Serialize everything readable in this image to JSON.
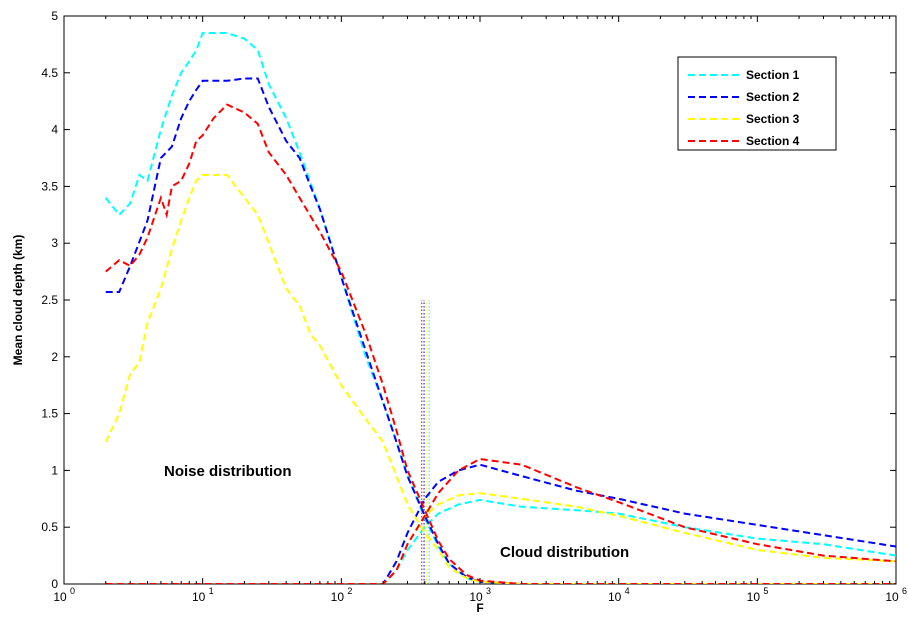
{
  "chart_data": {
    "type": "line",
    "title": "",
    "xlabel": "F",
    "ylabel": "Mean cloud depth (km)",
    "xscale": "log",
    "xlim": [
      1,
      1000000
    ],
    "ylim": [
      0,
      5
    ],
    "x_ticks": [
      1,
      10,
      100,
      1000,
      10000,
      100000,
      1000000
    ],
    "x_tick_labels": [
      {
        "base": "10",
        "exp": "0"
      },
      {
        "base": "10",
        "exp": "1"
      },
      {
        "base": "10",
        "exp": "2"
      },
      {
        "base": "10",
        "exp": "3"
      },
      {
        "base": "10",
        "exp": "4"
      },
      {
        "base": "10",
        "exp": "5"
      },
      {
        "base": "10",
        "exp": "6"
      }
    ],
    "y_ticks": [
      0,
      0.5,
      1,
      1.5,
      2,
      2.5,
      3,
      3.5,
      4,
      4.5,
      5
    ],
    "y_tick_labels": [
      "0",
      "0.5",
      "1",
      "1.5",
      "2",
      "2.5",
      "3",
      "3.5",
      "4",
      "4.5",
      "5"
    ],
    "grid": false,
    "legend_position": "top-right",
    "annotations": [
      "Noise distribution",
      "Cloud distribution"
    ],
    "vertical_markers": [
      {
        "x": 380,
        "y_max": 2.5,
        "color": "#ff0000"
      },
      {
        "x": 395,
        "y_max": 2.5,
        "color": "#0000ff"
      },
      {
        "x": 410,
        "y_max": 2.5,
        "color": "#ffff00"
      },
      {
        "x": 430,
        "y_max": 2.5,
        "color": "#00ffff"
      }
    ],
    "series": [
      {
        "name": "Section 1",
        "color": "#00ffff",
        "noise": [
          [
            2,
            3.4
          ],
          [
            2.5,
            3.25
          ],
          [
            3,
            3.35
          ],
          [
            3.5,
            3.6
          ],
          [
            4,
            3.55
          ],
          [
            5,
            4.0
          ],
          [
            6,
            4.3
          ],
          [
            7,
            4.5
          ],
          [
            8,
            4.6
          ],
          [
            9,
            4.7
          ],
          [
            10,
            4.85
          ],
          [
            15,
            4.85
          ],
          [
            20,
            4.8
          ],
          [
            25,
            4.7
          ],
          [
            30,
            4.4
          ],
          [
            40,
            4.1
          ],
          [
            50,
            3.8
          ],
          [
            70,
            3.3
          ],
          [
            100,
            2.7
          ],
          [
            150,
            2.0
          ],
          [
            200,
            1.6
          ],
          [
            250,
            1.25
          ],
          [
            300,
            0.95
          ],
          [
            400,
            0.58
          ],
          [
            500,
            0.33
          ],
          [
            600,
            0.18
          ],
          [
            800,
            0.05
          ],
          [
            1000,
            0.02
          ],
          [
            2000,
            0
          ],
          [
            1000000,
            0
          ]
        ],
        "cloud": [
          [
            2,
            0
          ],
          [
            200,
            0
          ],
          [
            250,
            0.12
          ],
          [
            300,
            0.3
          ],
          [
            400,
            0.5
          ],
          [
            500,
            0.62
          ],
          [
            700,
            0.7
          ],
          [
            1000,
            0.74
          ],
          [
            2000,
            0.68
          ],
          [
            5000,
            0.65
          ],
          [
            10000,
            0.62
          ],
          [
            30000,
            0.5
          ],
          [
            100000,
            0.4
          ],
          [
            300000,
            0.35
          ],
          [
            1000000,
            0.25
          ]
        ]
      },
      {
        "name": "Section 2",
        "color": "#0000ff",
        "noise": [
          [
            2,
            2.57
          ],
          [
            2.5,
            2.57
          ],
          [
            3,
            2.8
          ],
          [
            4,
            3.2
          ],
          [
            5,
            3.75
          ],
          [
            6,
            3.85
          ],
          [
            7,
            4.1
          ],
          [
            8,
            4.25
          ],
          [
            9,
            4.35
          ],
          [
            10,
            4.43
          ],
          [
            15,
            4.43
          ],
          [
            20,
            4.45
          ],
          [
            25,
            4.45
          ],
          [
            30,
            4.2
          ],
          [
            40,
            3.9
          ],
          [
            50,
            3.75
          ],
          [
            60,
            3.5
          ],
          [
            70,
            3.3
          ],
          [
            100,
            2.7
          ],
          [
            150,
            2.05
          ],
          [
            200,
            1.6
          ],
          [
            250,
            1.25
          ],
          [
            300,
            0.95
          ],
          [
            400,
            0.6
          ],
          [
            500,
            0.35
          ],
          [
            600,
            0.18
          ],
          [
            800,
            0.06
          ],
          [
            1000,
            0.02
          ],
          [
            2000,
            0
          ],
          [
            1000000,
            0
          ]
        ],
        "cloud": [
          [
            2,
            0
          ],
          [
            200,
            0
          ],
          [
            250,
            0.2
          ],
          [
            300,
            0.45
          ],
          [
            400,
            0.75
          ],
          [
            500,
            0.9
          ],
          [
            700,
            1.0
          ],
          [
            1000,
            1.05
          ],
          [
            2000,
            0.95
          ],
          [
            5000,
            0.82
          ],
          [
            10000,
            0.75
          ],
          [
            30000,
            0.62
          ],
          [
            100000,
            0.52
          ],
          [
            300000,
            0.43
          ],
          [
            1000000,
            0.33
          ]
        ]
      },
      {
        "name": "Section 3",
        "color": "#ffff00",
        "noise": [
          [
            2,
            1.25
          ],
          [
            2.5,
            1.5
          ],
          [
            3,
            1.85
          ],
          [
            3.5,
            1.95
          ],
          [
            4,
            2.3
          ],
          [
            5,
            2.6
          ],
          [
            6,
            2.95
          ],
          [
            7,
            3.2
          ],
          [
            8,
            3.4
          ],
          [
            9,
            3.55
          ],
          [
            10,
            3.6
          ],
          [
            15,
            3.6
          ],
          [
            20,
            3.4
          ],
          [
            25,
            3.25
          ],
          [
            30,
            3.0
          ],
          [
            40,
            2.6
          ],
          [
            50,
            2.45
          ],
          [
            60,
            2.2
          ],
          [
            70,
            2.1
          ],
          [
            100,
            1.75
          ],
          [
            150,
            1.45
          ],
          [
            200,
            1.25
          ],
          [
            250,
            0.95
          ],
          [
            300,
            0.7
          ],
          [
            400,
            0.45
          ],
          [
            500,
            0.3
          ],
          [
            600,
            0.15
          ],
          [
            800,
            0.05
          ],
          [
            1000,
            0.02
          ],
          [
            2000,
            0
          ],
          [
            1000000,
            0
          ]
        ],
        "cloud": [
          [
            2,
            0
          ],
          [
            200,
            0
          ],
          [
            250,
            0.12
          ],
          [
            300,
            0.35
          ],
          [
            400,
            0.6
          ],
          [
            500,
            0.7
          ],
          [
            700,
            0.78
          ],
          [
            1000,
            0.8
          ],
          [
            2000,
            0.75
          ],
          [
            5000,
            0.68
          ],
          [
            10000,
            0.6
          ],
          [
            30000,
            0.45
          ],
          [
            100000,
            0.3
          ],
          [
            300000,
            0.23
          ],
          [
            1000000,
            0.2
          ]
        ]
      },
      {
        "name": "Section 4",
        "color": "#ff0000",
        "noise": [
          [
            2,
            2.75
          ],
          [
            2.5,
            2.85
          ],
          [
            3,
            2.8
          ],
          [
            3.5,
            2.9
          ],
          [
            4,
            3.05
          ],
          [
            5,
            3.4
          ],
          [
            5.5,
            3.25
          ],
          [
            6,
            3.5
          ],
          [
            7,
            3.55
          ],
          [
            8,
            3.7
          ],
          [
            9,
            3.9
          ],
          [
            10,
            3.95
          ],
          [
            12,
            4.1
          ],
          [
            15,
            4.22
          ],
          [
            20,
            4.15
          ],
          [
            25,
            4.05
          ],
          [
            30,
            3.8
          ],
          [
            40,
            3.6
          ],
          [
            50,
            3.4
          ],
          [
            70,
            3.1
          ],
          [
            100,
            2.75
          ],
          [
            150,
            2.2
          ],
          [
            200,
            1.75
          ],
          [
            250,
            1.35
          ],
          [
            300,
            1.0
          ],
          [
            400,
            0.65
          ],
          [
            500,
            0.38
          ],
          [
            600,
            0.22
          ],
          [
            800,
            0.08
          ],
          [
            1000,
            0.03
          ],
          [
            2000,
            0
          ],
          [
            1000000,
            0
          ]
        ],
        "cloud": [
          [
            2,
            0
          ],
          [
            200,
            0
          ],
          [
            250,
            0.12
          ],
          [
            300,
            0.35
          ],
          [
            400,
            0.6
          ],
          [
            500,
            0.8
          ],
          [
            700,
            1.0
          ],
          [
            1000,
            1.1
          ],
          [
            2000,
            1.05
          ],
          [
            5000,
            0.85
          ],
          [
            10000,
            0.72
          ],
          [
            30000,
            0.5
          ],
          [
            100000,
            0.35
          ],
          [
            300000,
            0.25
          ],
          [
            1000000,
            0.2
          ]
        ]
      }
    ]
  }
}
